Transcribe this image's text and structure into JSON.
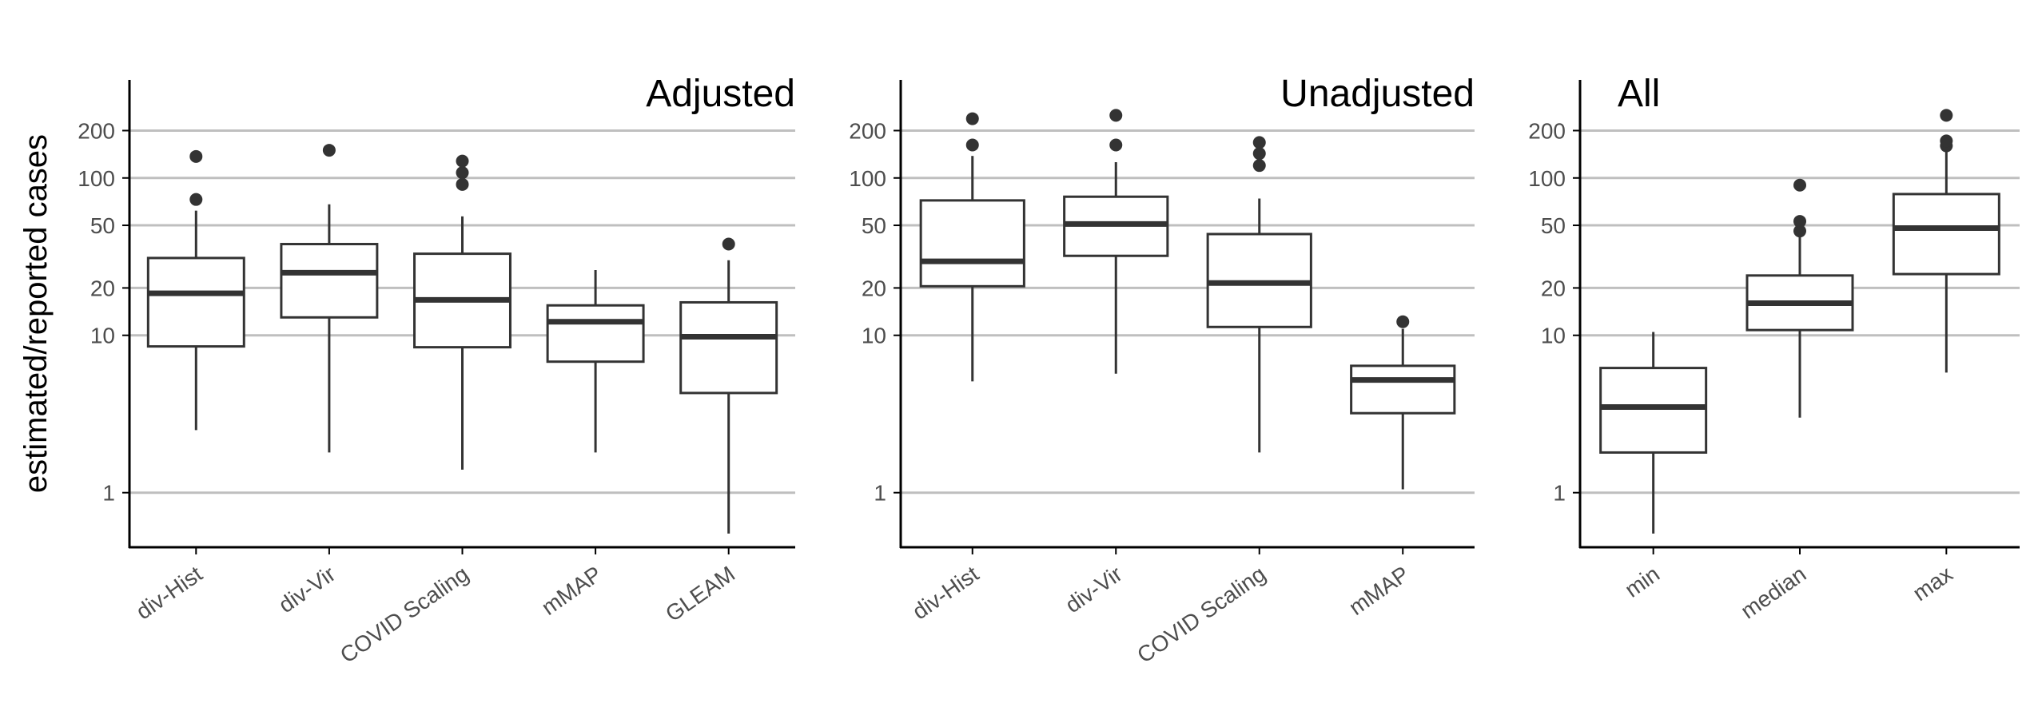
{
  "chart_data": {
    "type": "box",
    "ylabel": "estimated/reported cases",
    "yscale": "log",
    "yticks": [
      1,
      10,
      20,
      50,
      100,
      200
    ],
    "ylim": [
      0.45,
      420
    ],
    "grid": "horizontal major",
    "colors": {
      "box": "#333333",
      "grid": "#bfbfbf",
      "axis": "#000000",
      "tick_text": "#4d4d4d"
    },
    "panels": [
      {
        "title": "Adjusted",
        "title_position": "top-right",
        "categories": [
          "div-Hist",
          "div-Vir",
          "COVID Scaling",
          "mMAP",
          "GLEAM"
        ],
        "boxes": [
          {
            "q1": 8.5,
            "median": 18.5,
            "q3": 31,
            "whisker_low": 2.5,
            "whisker_high": 62,
            "outliers": [
              73,
              137
            ]
          },
          {
            "q1": 13,
            "median": 25,
            "q3": 38,
            "whisker_low": 1.8,
            "whisker_high": 68,
            "outliers": [
              150
            ]
          },
          {
            "q1": 8.4,
            "median": 16.8,
            "q3": 33,
            "whisker_low": 1.4,
            "whisker_high": 57,
            "outliers": [
              91,
              108,
              128
            ]
          },
          {
            "q1": 6.8,
            "median": 12.2,
            "q3": 15.5,
            "whisker_low": 1.8,
            "whisker_high": 26,
            "outliers": []
          },
          {
            "q1": 4.3,
            "median": 9.8,
            "q3": 16.2,
            "whisker_low": 0.55,
            "whisker_high": 30,
            "outliers": [
              38
            ]
          }
        ]
      },
      {
        "title": "Unadjusted",
        "title_position": "top-right",
        "categories": [
          "div-Hist",
          "div-Vir",
          "COVID Scaling",
          "mMAP"
        ],
        "boxes": [
          {
            "q1": 20.5,
            "median": 29.5,
            "q3": 72,
            "whisker_low": 5.1,
            "whisker_high": 138,
            "outliers": [
              162,
              238
            ]
          },
          {
            "q1": 32,
            "median": 51,
            "q3": 76,
            "whisker_low": 5.7,
            "whisker_high": 126,
            "outliers": [
              162,
              250
            ]
          },
          {
            "q1": 11.3,
            "median": 21.5,
            "q3": 44,
            "whisker_low": 1.8,
            "whisker_high": 74,
            "outliers": [
              120,
              143,
              168
            ]
          },
          {
            "q1": 3.2,
            "median": 5.2,
            "q3": 6.4,
            "whisker_low": 1.05,
            "whisker_high": 11,
            "outliers": [
              12.2
            ]
          }
        ]
      },
      {
        "title": "All",
        "title_position": "top-left",
        "categories": [
          "min",
          "median",
          "max"
        ],
        "boxes": [
          {
            "q1": 1.8,
            "median": 3.5,
            "q3": 6.2,
            "whisker_low": 0.55,
            "whisker_high": 10.5,
            "outliers": []
          },
          {
            "q1": 10.8,
            "median": 16,
            "q3": 24,
            "whisker_low": 3,
            "whisker_high": 42,
            "outliers": [
              46,
              53,
              90
            ]
          },
          {
            "q1": 24.5,
            "median": 48,
            "q3": 79,
            "whisker_low": 5.8,
            "whisker_high": 150,
            "outliers": [
              160,
              172,
              250
            ]
          }
        ]
      }
    ]
  }
}
